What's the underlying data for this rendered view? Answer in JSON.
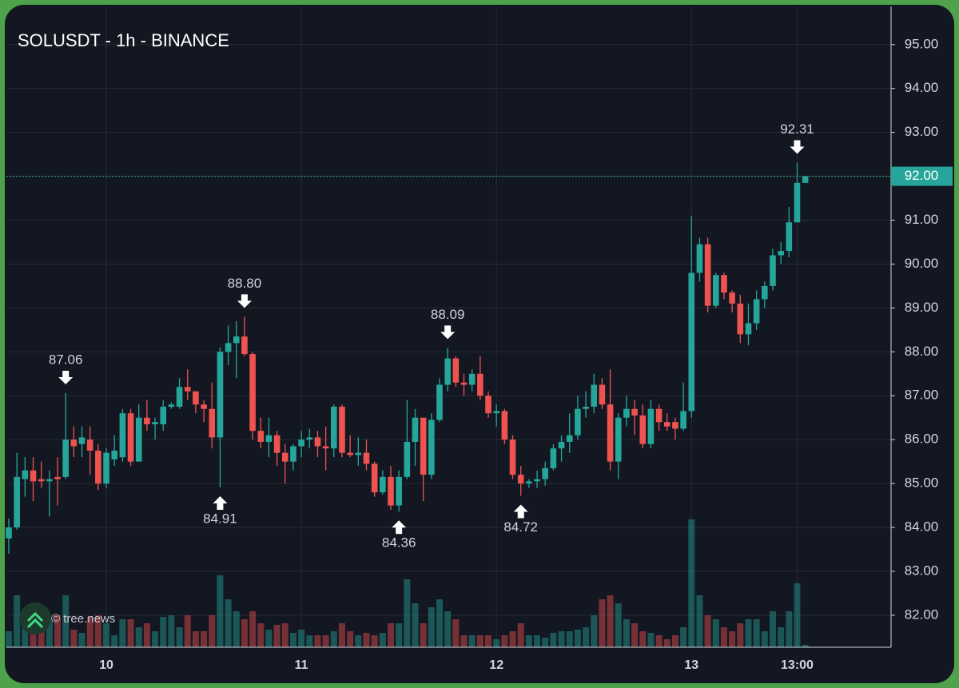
{
  "chart_data": {
    "type": "candlestick",
    "title": "SOLUSDT - 1h - BINANCE",
    "watermark": "© tree.news",
    "categories": [
      null,
      null,
      null,
      null,
      null,
      null,
      null,
      null,
      null,
      null,
      null,
      null,
      "10",
      null,
      null,
      null,
      null,
      null,
      null,
      null,
      null,
      null,
      null,
      null,
      null,
      null,
      null,
      null,
      null,
      null,
      null,
      null,
      null,
      null,
      null,
      null,
      "11",
      null,
      null,
      null,
      null,
      null,
      null,
      null,
      null,
      null,
      null,
      null,
      null,
      null,
      null,
      null,
      null,
      null,
      null,
      null,
      null,
      null,
      null,
      null,
      "12",
      null,
      null,
      null,
      null,
      null,
      null,
      null,
      null,
      null,
      null,
      null,
      null,
      null,
      null,
      null,
      null,
      null,
      null,
      null,
      null,
      null,
      null,
      null,
      "13",
      null,
      null,
      null,
      null,
      null,
      null,
      null,
      null,
      null,
      null,
      null,
      null,
      "13:00",
      null
    ],
    "open": [
      83.75,
      84.0,
      85.1,
      85.3,
      85.1,
      85.05,
      85.15,
      85.15,
      86.0,
      85.9,
      86.0,
      85.75,
      85.0,
      85.55,
      85.6,
      86.6,
      85.5,
      86.5,
      86.35,
      86.35,
      86.75,
      86.75,
      87.2,
      87.1,
      86.8,
      86.7,
      86.05,
      88.0,
      88.2,
      88.35,
      87.95,
      86.2,
      85.95,
      86.1,
      85.7,
      85.5,
      85.85,
      86.0,
      86.05,
      85.85,
      85.8,
      86.75,
      85.7,
      85.65,
      85.7,
      85.45,
      84.8,
      85.15,
      84.5,
      85.15,
      85.95,
      86.5,
      85.2,
      86.45,
      87.25,
      87.85,
      87.3,
      87.25,
      87.5,
      87.0,
      86.6,
      86.65,
      86.0,
      85.2,
      85.0,
      85.05,
      85.1,
      85.35,
      85.8,
      85.95,
      86.1,
      86.7,
      86.75,
      87.25,
      86.8,
      85.5,
      86.5,
      86.7,
      86.55,
      85.9,
      86.7,
      86.4,
      86.4,
      86.25,
      86.65,
      89.8,
      90.45,
      89.05,
      89.75,
      89.35,
      89.1,
      88.4,
      88.65,
      89.2,
      89.5,
      90.2,
      90.3,
      90.95,
      91.85
    ],
    "high": [
      84.2,
      85.7,
      85.6,
      85.6,
      85.5,
      85.3,
      85.6,
      87.06,
      86.3,
      86.3,
      86.3,
      85.9,
      85.8,
      86.1,
      86.7,
      86.7,
      86.8,
      86.9,
      86.5,
      86.9,
      86.85,
      87.4,
      87.6,
      87.1,
      86.9,
      87.3,
      88.1,
      88.6,
      88.7,
      88.8,
      88.0,
      86.5,
      86.5,
      86.2,
      85.9,
      85.9,
      86.2,
      86.25,
      86.2,
      86.3,
      86.8,
      86.8,
      86.1,
      86.05,
      86.0,
      85.5,
      85.3,
      85.4,
      85.3,
      86.9,
      86.7,
      86.5,
      86.6,
      87.4,
      88.09,
      87.9,
      87.5,
      87.6,
      87.9,
      87.1,
      86.8,
      86.7,
      86.1,
      85.4,
      85.1,
      85.3,
      85.5,
      85.9,
      86.1,
      86.6,
      87.0,
      87.1,
      87.5,
      87.4,
      87.6,
      86.6,
      87.0,
      86.9,
      86.8,
      86.9,
      86.8,
      86.6,
      86.5,
      87.3,
      91.1,
      90.6,
      90.6,
      89.8,
      89.8,
      89.4,
      89.3,
      89.1,
      89.4,
      89.6,
      90.35,
      90.5,
      91.3,
      92.31,
      92.0
    ],
    "low": [
      83.4,
      83.95,
      84.7,
      84.6,
      84.9,
      84.25,
      84.5,
      85.1,
      85.6,
      85.6,
      85.2,
      84.85,
      84.9,
      85.4,
      85.5,
      85.4,
      85.5,
      86.2,
      86.0,
      86.2,
      86.7,
      86.7,
      86.9,
      86.6,
      86.4,
      85.8,
      84.91,
      87.7,
      87.4,
      87.9,
      86.0,
      85.8,
      85.6,
      85.4,
      85.0,
      85.3,
      85.6,
      85.8,
      85.6,
      85.3,
      85.6,
      85.6,
      85.6,
      85.4,
      85.3,
      84.7,
      84.75,
      84.4,
      84.36,
      85.1,
      85.4,
      84.6,
      85.1,
      86.4,
      87.1,
      87.2,
      87.0,
      87.1,
      86.9,
      86.5,
      86.3,
      85.9,
      85.1,
      84.72,
      84.9,
      84.9,
      84.95,
      85.3,
      85.5,
      85.7,
      86.0,
      86.5,
      86.6,
      86.7,
      85.3,
      85.1,
      86.3,
      86.1,
      85.8,
      85.8,
      86.2,
      86.2,
      86.0,
      86.2,
      86.5,
      89.6,
      88.9,
      89.0,
      89.2,
      88.9,
      88.2,
      88.15,
      88.5,
      89.0,
      89.4,
      90.0,
      90.15,
      90.95,
      91.85
    ],
    "close": [
      84.0,
      85.15,
      85.3,
      85.05,
      85.05,
      85.1,
      85.1,
      86.0,
      85.85,
      86.05,
      85.75,
      85.0,
      85.7,
      85.75,
      86.6,
      85.5,
      86.5,
      86.35,
      86.4,
      86.75,
      86.8,
      87.2,
      87.1,
      86.8,
      86.7,
      86.05,
      88.0,
      88.2,
      88.35,
      87.95,
      86.2,
      85.95,
      86.1,
      85.7,
      85.5,
      85.85,
      86.0,
      86.05,
      85.85,
      85.8,
      86.75,
      85.7,
      85.65,
      85.7,
      85.45,
      84.8,
      85.15,
      84.5,
      85.15,
      85.95,
      86.5,
      85.2,
      86.45,
      87.25,
      87.85,
      87.3,
      87.25,
      87.5,
      87.0,
      86.6,
      86.65,
      86.0,
      85.2,
      85.0,
      85.05,
      85.1,
      85.35,
      85.8,
      85.95,
      86.1,
      86.7,
      86.75,
      87.25,
      86.8,
      85.5,
      86.5,
      86.7,
      86.55,
      85.9,
      86.7,
      86.4,
      86.3,
      86.25,
      86.65,
      89.8,
      90.45,
      89.05,
      89.75,
      89.35,
      89.1,
      88.4,
      88.65,
      89.2,
      89.5,
      90.2,
      90.3,
      90.95,
      91.85,
      92.0
    ],
    "volume": [
      20,
      65,
      45,
      30,
      25,
      35,
      40,
      65,
      22,
      18,
      38,
      40,
      30,
      15,
      35,
      35,
      25,
      30,
      20,
      38,
      40,
      25,
      40,
      20,
      20,
      40,
      90,
      60,
      45,
      35,
      45,
      30,
      22,
      28,
      30,
      18,
      22,
      15,
      15,
      15,
      20,
      30,
      20,
      15,
      18,
      15,
      18,
      30,
      30,
      85,
      55,
      30,
      50,
      60,
      45,
      35,
      15,
      15,
      15,
      15,
      10,
      15,
      20,
      30,
      15,
      15,
      12,
      18,
      20,
      20,
      22,
      25,
      40,
      60,
      65,
      55,
      35,
      30,
      20,
      18,
      15,
      10,
      15,
      25,
      160,
      65,
      40,
      35,
      25,
      20,
      30,
      35,
      35,
      20,
      45,
      25,
      45,
      80,
      3
    ],
    "up_color": "#26a69a",
    "down_color": "#ef5350",
    "ylim": [
      81.27,
      95.87
    ],
    "yticks": [
      {
        "value": 82,
        "label": "82.00"
      },
      {
        "value": 83,
        "label": "83.00"
      },
      {
        "value": 84,
        "label": "84.00"
      },
      {
        "value": 85,
        "label": "85.00"
      },
      {
        "value": 86,
        "label": "86.00"
      },
      {
        "value": 87,
        "label": "87.00"
      },
      {
        "value": 88,
        "label": "88.00"
      },
      {
        "value": 89,
        "label": "89.00"
      },
      {
        "value": 90,
        "label": "90.00"
      },
      {
        "value": 91,
        "label": "91.00"
      },
      {
        "value": 92,
        "label": "92.00"
      },
      {
        "value": 93,
        "label": "93.00"
      },
      {
        "value": 94,
        "label": "94.00"
      },
      {
        "value": 95,
        "label": "95.00"
      }
    ],
    "last_price": {
      "value": 92,
      "label": "92.00"
    },
    "annotations": [
      {
        "value": 87.06,
        "label": "87.06",
        "side": "high"
      },
      {
        "value": 88.8,
        "label": "88.80",
        "side": "high"
      },
      {
        "value": 84.91,
        "label": "84.91",
        "side": "low"
      },
      {
        "value": 88.09,
        "label": "88.09",
        "side": "high"
      },
      {
        "value": 84.36,
        "label": "84.36",
        "side": "low"
      },
      {
        "value": 84.72,
        "label": "84.72",
        "side": "low"
      },
      {
        "value": 92.31,
        "label": "92.31",
        "side": "high"
      }
    ],
    "grid": true
  }
}
